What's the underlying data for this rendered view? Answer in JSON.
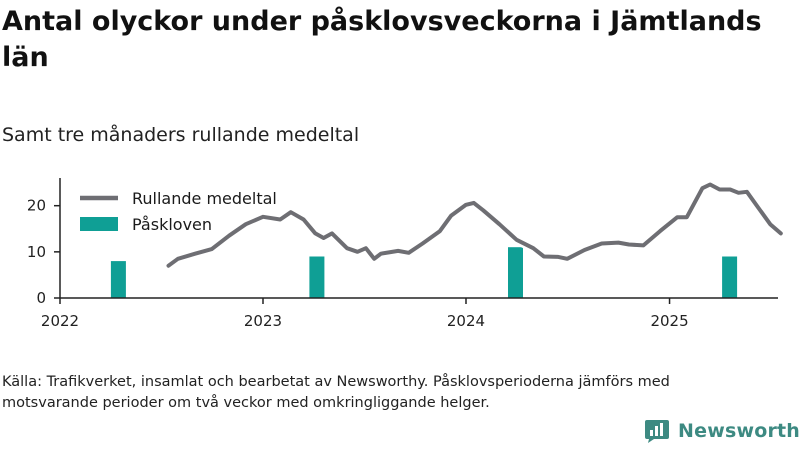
{
  "title": "Antal olyckor under påsklovsveckorna i Jämtlands län",
  "subtitle": "Samt tre månaders rullande medeltal",
  "source_note": "Källa: Trafikverket, insamlat och bearbetat av Newsworthy. Påsklovsperioderna jämförs med motsvarande perioder om två veckor med omkringliggande helger.",
  "brand": {
    "name": "Newsworthy",
    "icon": "bar-chart-logo-icon"
  },
  "colors": {
    "line": "#6e6e73",
    "bar": "#0f9f95",
    "axis": "#222222",
    "brand": "#3d8a82"
  },
  "chart_data": {
    "type": "bar+line",
    "title": "Antal olyckor under påsklovsveckorna i Jämtlands län",
    "subtitle": "Samt tre månaders rullande medeltal",
    "xlabel": "",
    "ylabel": "",
    "x_ticks": [
      "2022",
      "2023",
      "2024",
      "2025"
    ],
    "y_ticks": [
      0,
      10,
      20
    ],
    "ylim": [
      0,
      26
    ],
    "xlim": [
      "2022-01-01",
      "2025-07-15"
    ],
    "grid": false,
    "legend_position": "top-left",
    "series": [
      {
        "name": "Rullande medeltal",
        "type": "line",
        "points": [
          [
            "2022-07-15",
            7
          ],
          [
            "2022-08-01",
            8.5
          ],
          [
            "2022-09-01",
            9.6
          ],
          [
            "2022-10-01",
            10.6
          ],
          [
            "2022-11-01",
            13.5
          ],
          [
            "2022-12-01",
            16
          ],
          [
            "2023-01-01",
            17.6
          ],
          [
            "2023-02-01",
            17
          ],
          [
            "2023-02-20",
            18.6
          ],
          [
            "2023-03-15",
            17
          ],
          [
            "2023-04-05",
            14
          ],
          [
            "2023-04-20",
            13
          ],
          [
            "2023-05-05",
            14
          ],
          [
            "2023-06-01",
            10.8
          ],
          [
            "2023-06-20",
            10
          ],
          [
            "2023-07-05",
            10.8
          ],
          [
            "2023-07-20",
            8.5
          ],
          [
            "2023-08-01",
            9.6
          ],
          [
            "2023-09-01",
            10.2
          ],
          [
            "2023-09-20",
            9.8
          ],
          [
            "2023-10-15",
            11.8
          ],
          [
            "2023-11-15",
            14.5
          ],
          [
            "2023-12-05",
            17.8
          ],
          [
            "2024-01-01",
            20.2
          ],
          [
            "2024-01-15",
            20.6
          ],
          [
            "2024-02-01",
            19
          ],
          [
            "2024-03-01",
            16
          ],
          [
            "2024-04-01",
            12.6
          ],
          [
            "2024-05-01",
            10.8
          ],
          [
            "2024-05-20",
            9
          ],
          [
            "2024-06-15",
            8.9
          ],
          [
            "2024-07-01",
            8.5
          ],
          [
            "2024-08-01",
            10.4
          ],
          [
            "2024-09-01",
            11.8
          ],
          [
            "2024-10-01",
            12
          ],
          [
            "2024-10-20",
            11.6
          ],
          [
            "2024-11-15",
            11.4
          ],
          [
            "2024-12-15",
            14.5
          ],
          [
            "2025-01-15",
            17.5
          ],
          [
            "2025-02-01",
            17.5
          ],
          [
            "2025-03-01",
            23.8
          ],
          [
            "2025-03-15",
            24.6
          ],
          [
            "2025-04-01",
            23.5
          ],
          [
            "2025-04-20",
            23.5
          ],
          [
            "2025-05-05",
            22.8
          ],
          [
            "2025-05-20",
            23
          ],
          [
            "2025-06-10",
            19.5
          ],
          [
            "2025-07-01",
            16
          ],
          [
            "2025-07-20",
            14
          ]
        ]
      },
      {
        "name": "Påskloven",
        "type": "bar",
        "points": [
          [
            "2022-04-16",
            8
          ],
          [
            "2023-04-08",
            9
          ],
          [
            "2024-03-30",
            11
          ],
          [
            "2025-04-19",
            9
          ]
        ]
      }
    ]
  }
}
